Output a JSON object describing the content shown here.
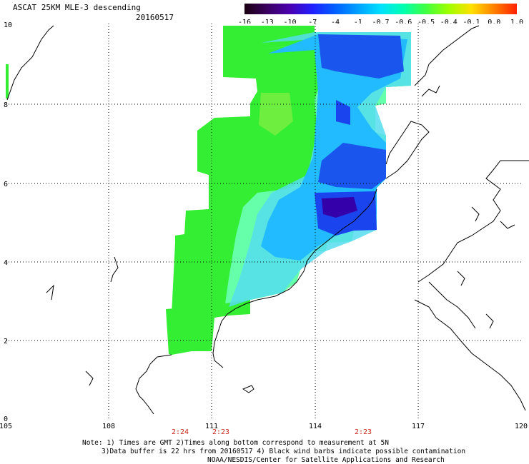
{
  "title": "ASCAT 25KM MLE-3 descending",
  "date": "20160517",
  "colorbar": {
    "labels": [
      "-16",
      "-13",
      "-10",
      "-7",
      "-4",
      "-1",
      "-0.7",
      "-0.6",
      "-0.5",
      "-0.4",
      "-0.1",
      "0.0",
      "1.0"
    ],
    "colors": [
      "#1a0010",
      "#3a0060",
      "#4a00b0",
      "#2020ff",
      "#0060ff",
      "#00a0ff",
      "#00e0ff",
      "#00ffb0",
      "#40ff40",
      "#a0ff00",
      "#ffe000",
      "#ff8000",
      "#ff2000"
    ]
  },
  "axes": {
    "x_ticks": [
      "105",
      "108",
      "111",
      "114",
      "117",
      "120"
    ],
    "y_ticks": [
      "0",
      "2",
      "4",
      "6",
      "8",
      "10"
    ]
  },
  "time_labels": [
    "2:24",
    "2:23",
    "2:23"
  ],
  "notes": {
    "line1": "Note: 1) Times are GMT 2)Times along bottom correspond to measurement at 5N",
    "line2": "3)Data buffer is 22 hrs from 20160517 4) Black wind barbs indicate possible contamination",
    "line3": "NOAA/NESDIS/Center for Satellite Applications and Research"
  },
  "colors": {
    "swath_green": "#33ee33",
    "swath_light": "#66ffaa",
    "swath_cyan": "#22ccff",
    "swath_blue": "#1a44ee",
    "swath_deep": "#3300aa",
    "time_red": "#c8281c"
  }
}
